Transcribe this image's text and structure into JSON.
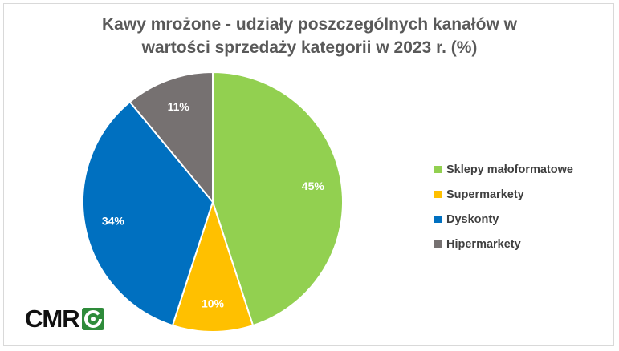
{
  "chart_data": {
    "type": "pie",
    "title_lines": [
      "Kawy mrożone - udziały poszczególnych kanałów w",
      "wartości sprzedaży kategorii w 2023 r. (%)"
    ],
    "slices": [
      {
        "name": "Sklepy małoformatowe",
        "value": 45,
        "label": "45%",
        "color": "#92D050"
      },
      {
        "name": "Supermarkety",
        "value": 10,
        "label": "10%",
        "color": "#FFC000"
      },
      {
        "name": "Dyskonty",
        "value": 34,
        "label": "34%",
        "color": "#0070C0"
      },
      {
        "name": "Hipermarkety",
        "value": 11,
        "label": "11%",
        "color": "#767171"
      }
    ],
    "start_angle": "12 o'clock",
    "direction": "clockwise",
    "legend_position": "right"
  },
  "logo": {
    "text": "CMR",
    "mark_icon": "cmr-logo-mark-icon",
    "mark_color": "#2E8B3A"
  }
}
